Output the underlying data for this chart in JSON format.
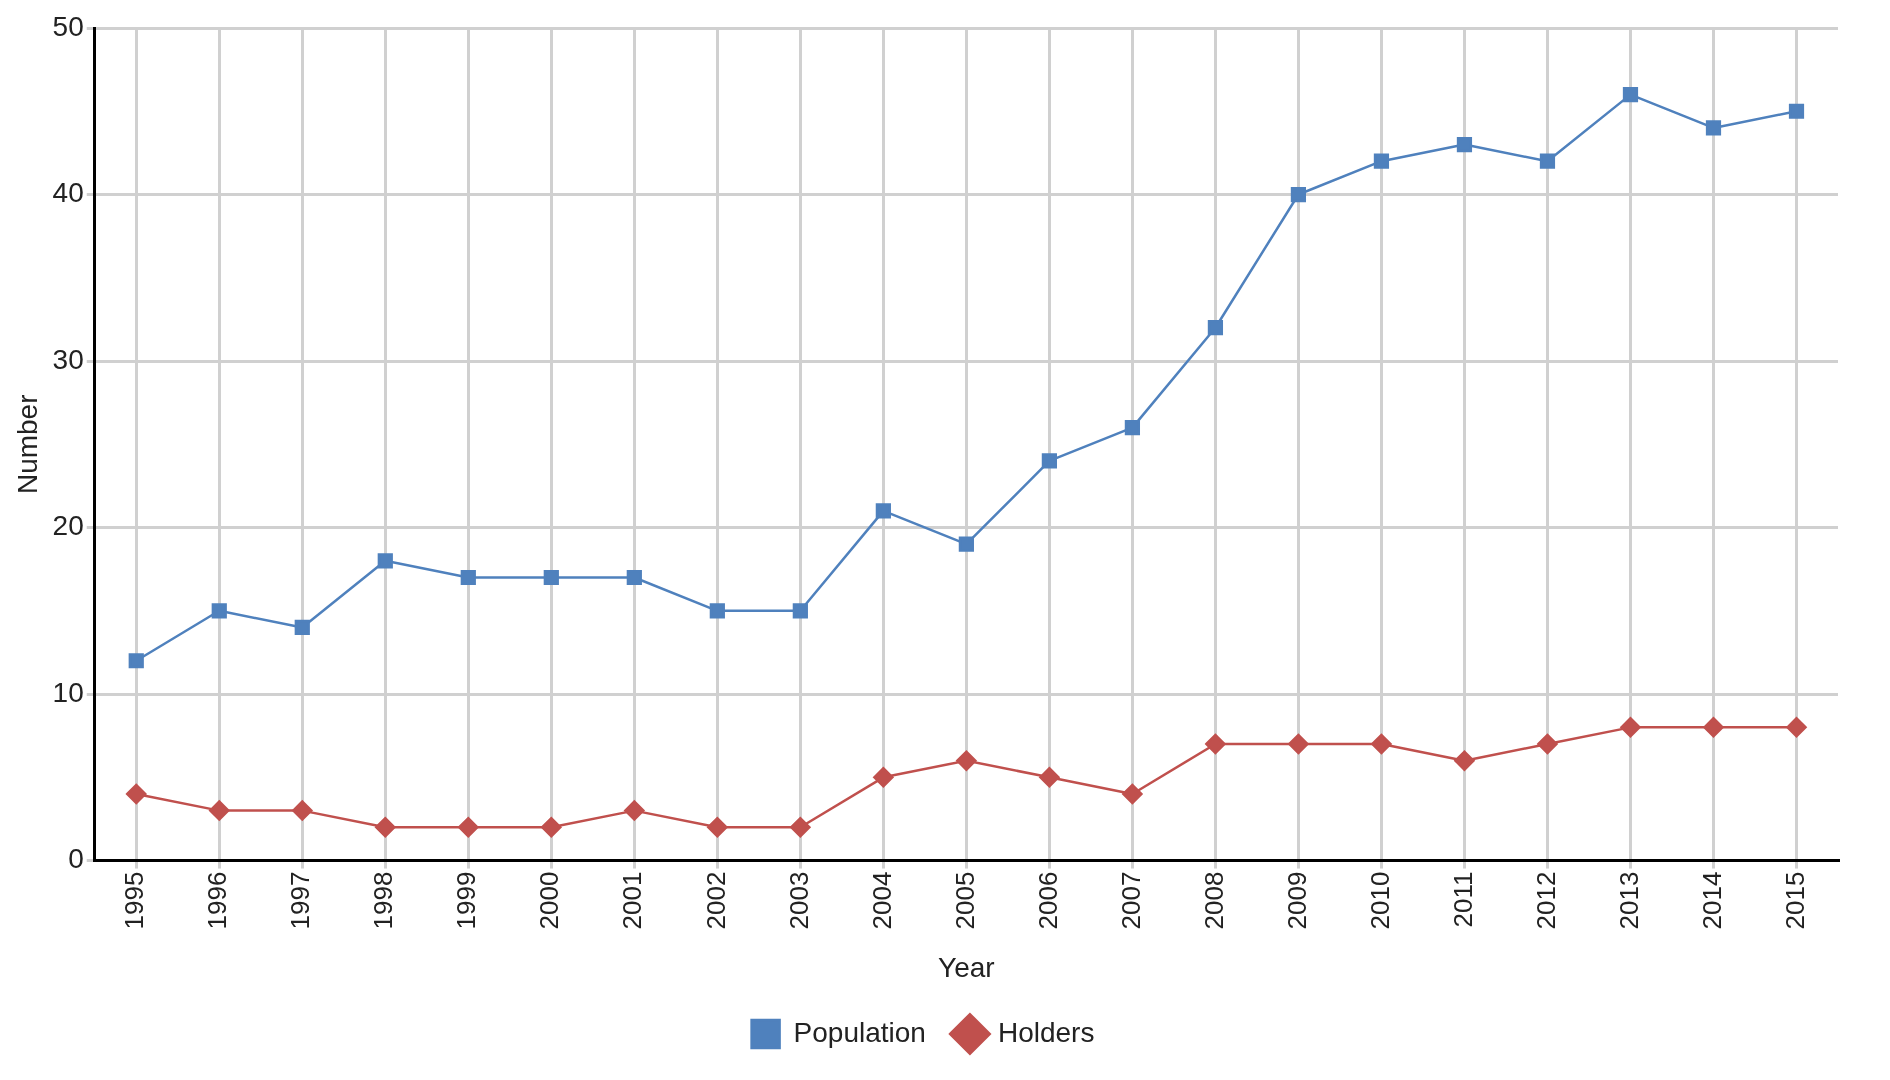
{
  "chart_data": {
    "type": "line",
    "xlabel": "Year",
    "ylabel": "Number",
    "categories": [
      "1995",
      "1996",
      "1997",
      "1998",
      "1999",
      "2000",
      "2001",
      "2002",
      "2003",
      "2004",
      "2005",
      "2006",
      "2007",
      "2008",
      "2009",
      "2010",
      "2011",
      "2012",
      "2013",
      "2014",
      "2015"
    ],
    "series": [
      {
        "name": "Population",
        "color": "#4f81bd",
        "marker": "square",
        "values": [
          12,
          15,
          14,
          18,
          17,
          17,
          17,
          15,
          15,
          21,
          19,
          24,
          26,
          32,
          40,
          42,
          43,
          42,
          46,
          44,
          45
        ]
      },
      {
        "name": "Holders",
        "color": "#c0504d",
        "marker": "diamond",
        "values": [
          4,
          3,
          3,
          2,
          2,
          2,
          3,
          2,
          2,
          5,
          6,
          5,
          4,
          7,
          7,
          7,
          6,
          7,
          8,
          8,
          8
        ]
      }
    ],
    "ylim": [
      0,
      50
    ],
    "yticks": [
      0,
      10,
      20,
      30,
      40,
      50
    ],
    "grid": true,
    "legend": "bottom",
    "line_style": "solid"
  }
}
